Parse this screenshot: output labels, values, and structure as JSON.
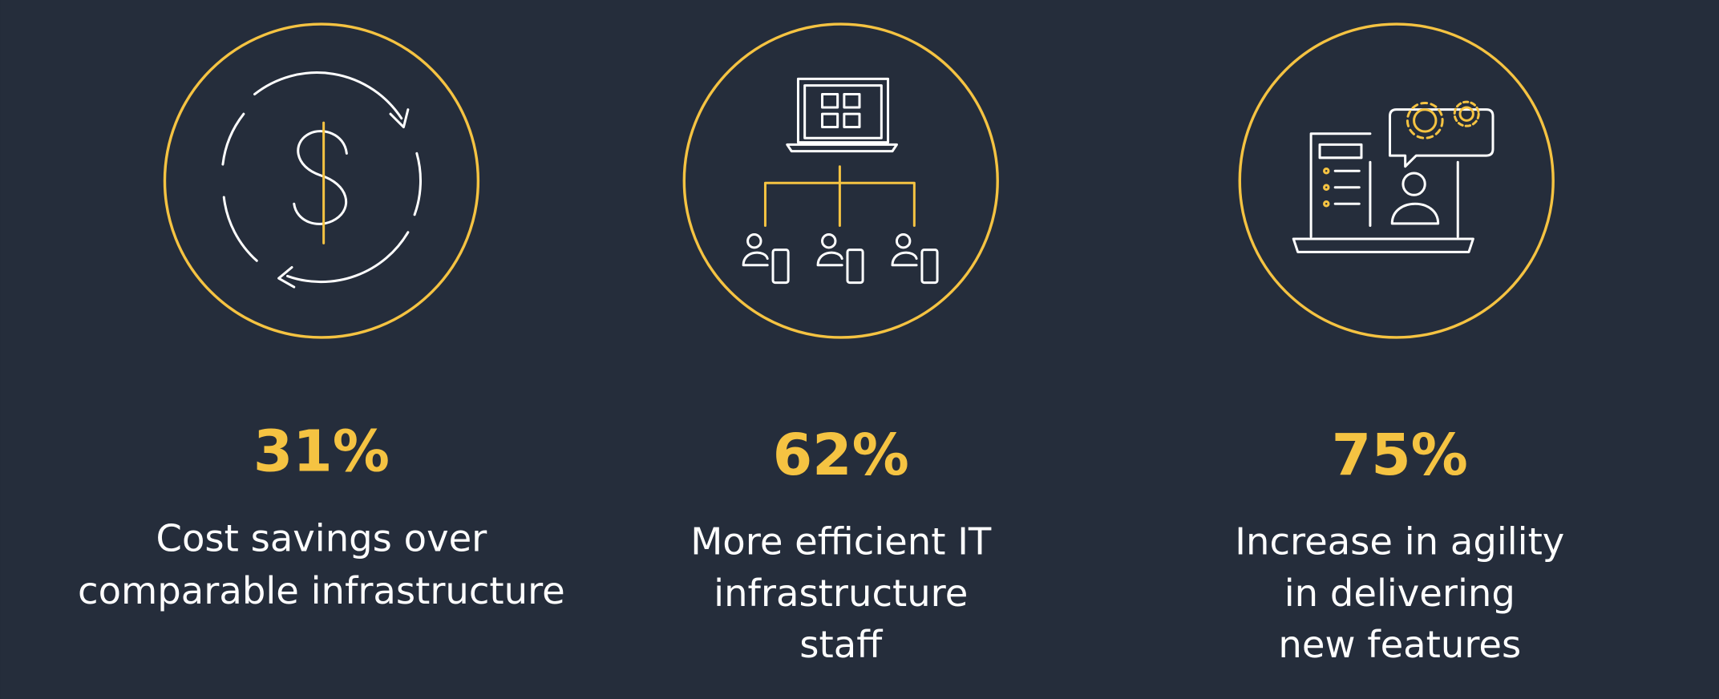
{
  "stats": [
    {
      "value": "31%",
      "description": [
        "Cost savings over",
        "comparable infrastructure"
      ]
    },
    {
      "value": "62%",
      "description": [
        "More efficient IT",
        "infrastructure",
        "staff"
      ]
    },
    {
      "value": "75%",
      "description": [
        "Increase in agility",
        "in delivering",
        "new features"
      ]
    }
  ]
}
